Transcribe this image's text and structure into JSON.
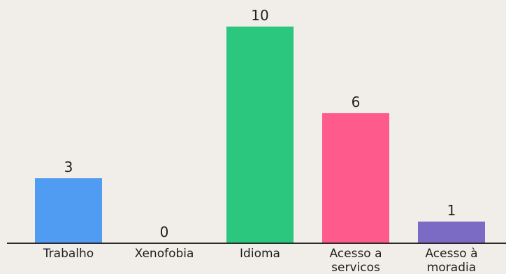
{
  "chart_data": {
    "type": "bar",
    "categories": [
      "Trabalho",
      "Xenofobia",
      "Idioma",
      "Acesso a servicos",
      "Acesso à moradia"
    ],
    "tick_lines": [
      [
        "Trabalho"
      ],
      [
        "Xenofobia"
      ],
      [
        "Idioma"
      ],
      [
        "Acesso a",
        "servicos"
      ],
      [
        "Acesso à",
        "moradia"
      ]
    ],
    "values": [
      3,
      0,
      10,
      6,
      1
    ],
    "colors": [
      "#4f9cf2",
      "#4f9cf2",
      "#2bc77f",
      "#ff5a8c",
      "#7c6bc4"
    ],
    "ylim": [
      0,
      10
    ],
    "grid": false,
    "background": "#f1eee9",
    "axis_color": "#2a2a2a",
    "title": "",
    "xlabel": "",
    "ylabel": ""
  }
}
